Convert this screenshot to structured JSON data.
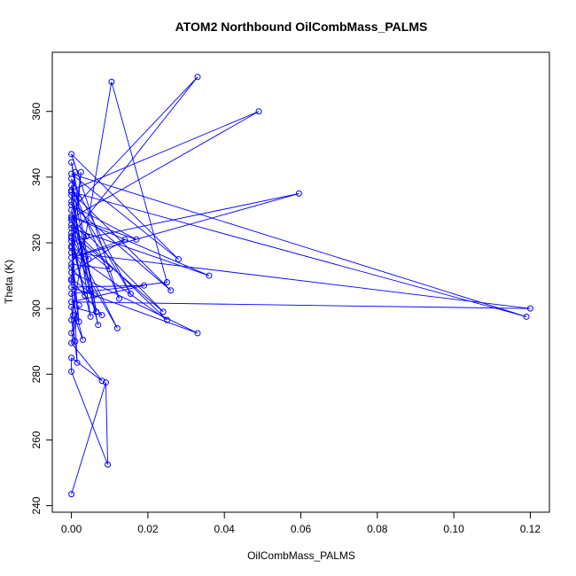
{
  "chart_data": {
    "type": "scatter",
    "title": "ATOM2 Northbound OilCombMass_PALMS",
    "xlabel": "OilCombMass_PALMS",
    "ylabel": "Theta (K)",
    "xlim": [
      -0.005,
      0.125
    ],
    "ylim": [
      238,
      378
    ],
    "xticks": [
      0.0,
      0.02,
      0.04,
      0.06,
      0.08,
      0.1,
      0.12
    ],
    "xtick_labels": [
      "0.00",
      "0.02",
      "0.04",
      "0.06",
      "0.08",
      "0.10",
      "0.12"
    ],
    "yticks": [
      240,
      260,
      280,
      300,
      320,
      340,
      360
    ],
    "ytick_labels": [
      "240",
      "260",
      "280",
      "300",
      "320",
      "340",
      "360"
    ],
    "grid": false,
    "color": "#0000ff",
    "series": [
      {
        "style": "points-and-lines",
        "points": [
          [
            0.0,
            243.5
          ],
          [
            0.009,
            277.5
          ],
          [
            0.0095,
            252.5
          ],
          [
            0.0,
            280.8
          ],
          [
            0.0,
            285.0
          ],
          [
            0.008,
            278.0
          ],
          [
            0.0,
            289.5
          ],
          [
            0.002,
            301.0
          ],
          [
            0.0,
            292.5
          ],
          [
            0.001,
            290.0
          ],
          [
            0.0,
            296.5
          ],
          [
            0.0105,
            369.0
          ],
          [
            0.025,
            308.0
          ],
          [
            0.0,
            304.5
          ],
          [
            0.003,
            290.5
          ],
          [
            0.0005,
            298.0
          ],
          [
            0.0,
            309.0
          ],
          [
            0.006,
            304.0
          ],
          [
            0.0,
            312.5
          ],
          [
            0.002,
            296.0
          ],
          [
            0.0,
            318.5
          ],
          [
            0.012,
            294.0
          ],
          [
            0.0,
            322.0
          ],
          [
            0.033,
            370.5
          ],
          [
            0.0,
            330.0
          ],
          [
            0.005,
            305.5
          ],
          [
            0.0,
            334.5
          ],
          [
            0.0155,
            304.5
          ],
          [
            0.0,
            339.5
          ],
          [
            0.0065,
            299.0
          ],
          [
            0.0,
            344.5
          ],
          [
            0.002,
            333.5
          ],
          [
            0.0,
            336.0
          ],
          [
            0.049,
            360.0
          ],
          [
            0.0,
            327.5
          ],
          [
            0.024,
            299.0
          ],
          [
            0.0,
            323.0
          ],
          [
            0.0035,
            304.0
          ],
          [
            0.0,
            320.5
          ],
          [
            0.0595,
            335.0
          ],
          [
            0.0,
            315.5
          ],
          [
            0.014,
            321.0
          ],
          [
            0.0,
            311.0
          ],
          [
            0.033,
            292.5
          ],
          [
            0.0,
            306.5
          ],
          [
            0.019,
            307.0
          ],
          [
            0.0,
            302.0
          ],
          [
            0.12,
            300.0
          ],
          [
            0.0,
            317.0
          ],
          [
            0.025,
            296.5
          ],
          [
            0.0,
            324.5
          ],
          [
            0.036,
            310.0
          ],
          [
            0.0,
            328.0
          ],
          [
            0.017,
            321.0
          ],
          [
            0.0,
            331.5
          ],
          [
            0.026,
            305.5
          ],
          [
            0.0,
            335.5
          ],
          [
            0.119,
            297.5
          ],
          [
            0.0,
            341.0
          ],
          [
            0.028,
            315.0
          ],
          [
            0.0,
            347.0
          ],
          [
            0.0125,
            303.0
          ],
          [
            0.0,
            337.5
          ],
          [
            0.005,
            297.5
          ],
          [
            0.0,
            321.5
          ],
          [
            0.01,
            312.0
          ],
          [
            0.0,
            313.5
          ],
          [
            0.004,
            322.0
          ],
          [
            0.0,
            325.5
          ],
          [
            0.0015,
            283.5
          ],
          [
            0.0,
            300.5
          ],
          [
            0.008,
            298.0
          ],
          [
            0.0,
            308.5
          ],
          [
            0.0025,
            341.5
          ],
          [
            0.0,
            319.0
          ],
          [
            0.0045,
            315.0
          ],
          [
            0.0,
            327.0
          ],
          [
            0.007,
            295.0
          ],
          [
            0.0,
            332.5
          ],
          [
            0.001,
            341.5
          ]
        ]
      }
    ]
  }
}
